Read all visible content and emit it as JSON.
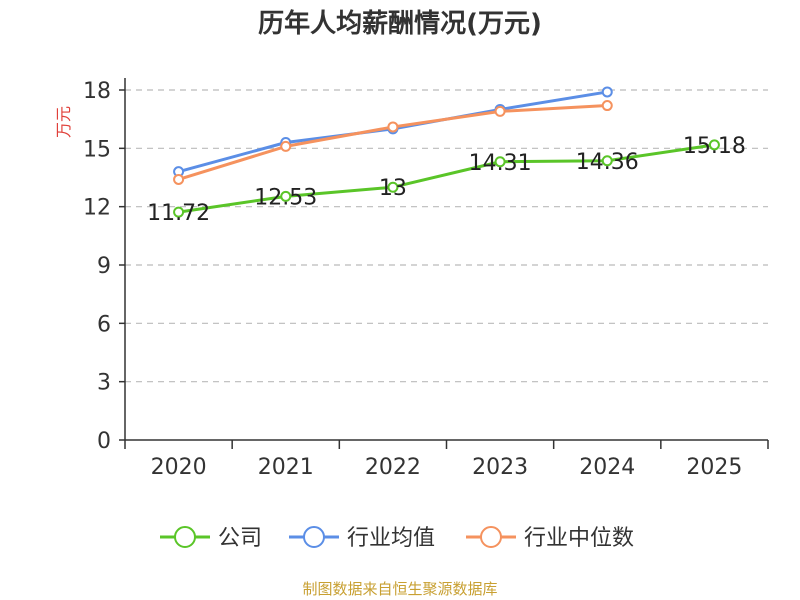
{
  "chart_data": {
    "type": "line",
    "title": "历年人均薪酬情况(万元)",
    "ylabel": "万元",
    "xlabel": "",
    "categories": [
      "2020",
      "2021",
      "2022",
      "2023",
      "2024",
      "2025"
    ],
    "ylim": [
      0,
      18
    ],
    "yticks": [
      0,
      3,
      6,
      9,
      12,
      15,
      18
    ],
    "grid": true,
    "legend_position": "bottom",
    "series": [
      {
        "name": "公司",
        "color": "#5ac528",
        "values": [
          11.72,
          12.53,
          13,
          14.31,
          14.36,
          15.18
        ],
        "show_labels": true
      },
      {
        "name": "行业均值",
        "color": "#5b8ee6",
        "values": [
          13.8,
          15.3,
          16.0,
          17.0,
          17.9,
          null
        ],
        "show_labels": false
      },
      {
        "name": "行业中位数",
        "color": "#f5925e",
        "values": [
          13.4,
          15.1,
          16.1,
          16.9,
          17.2,
          null
        ],
        "show_labels": false
      }
    ],
    "ylabel_color": "#e0403a"
  },
  "footer": {
    "text": "制图数据来自恒生聚源数据库",
    "color": "#c8a032"
  }
}
